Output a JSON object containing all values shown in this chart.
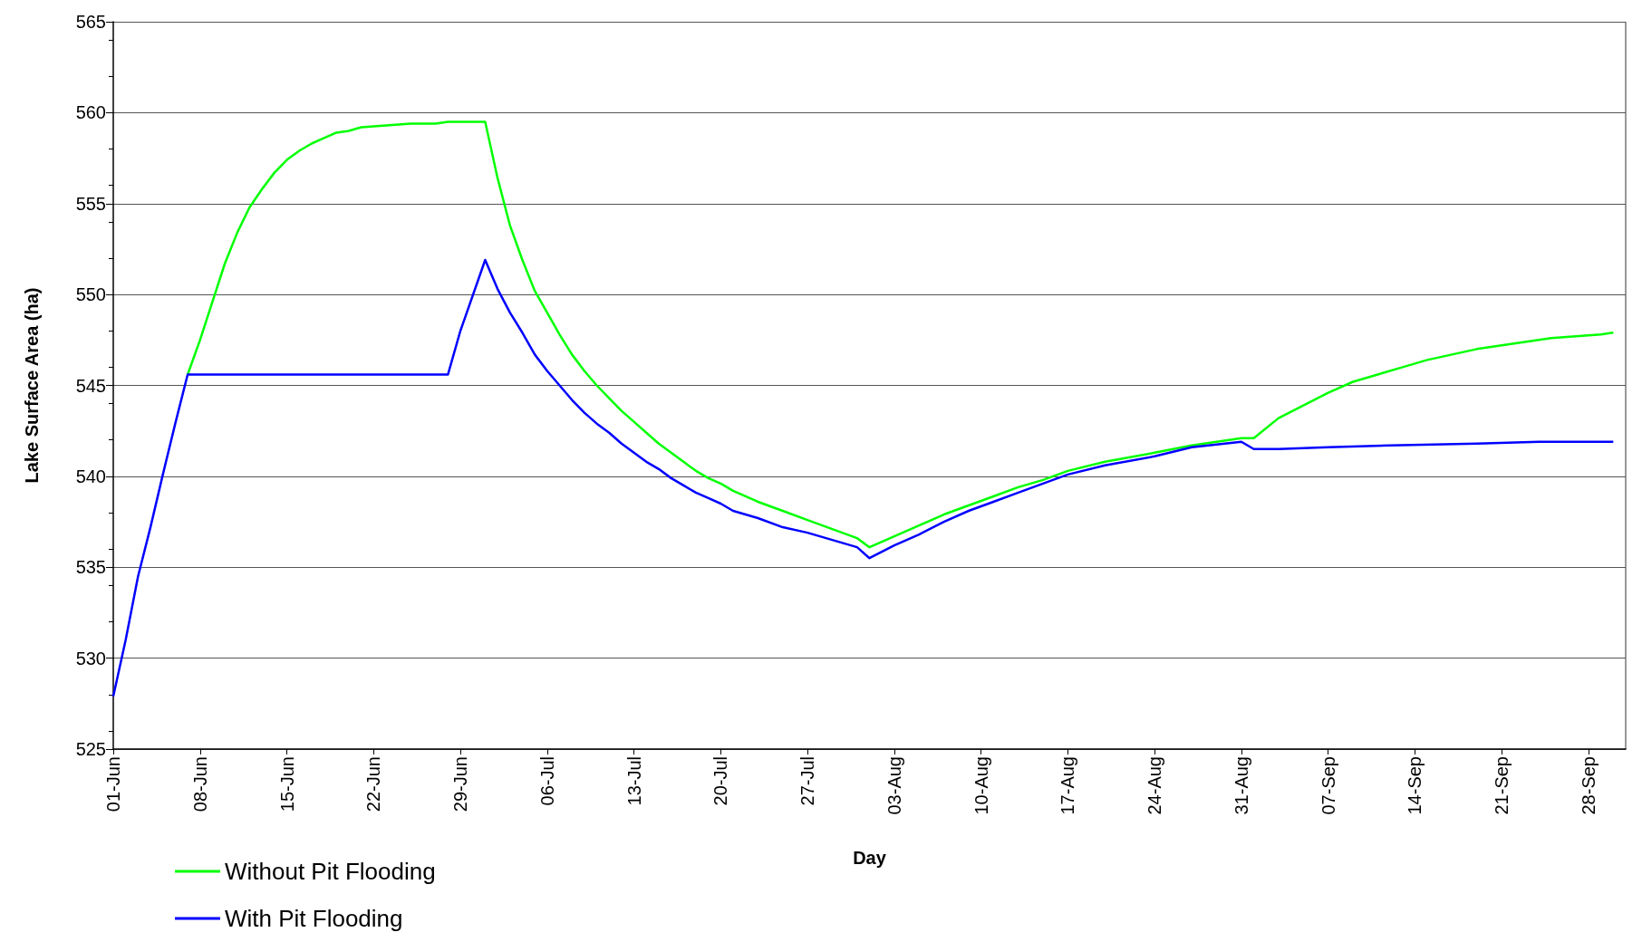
{
  "chart_data": {
    "type": "line",
    "xlabel": "Day",
    "ylabel": "Lake Surface Area (ha)",
    "xlim": [
      "--06-01",
      "--10-01"
    ],
    "ylim": [
      525,
      565
    ],
    "yticks": [
      525,
      530,
      535,
      540,
      545,
      550,
      555,
      560,
      565
    ],
    "xticks": [
      {
        "value": "--06-01",
        "label": "01-Jun"
      },
      {
        "value": "--06-08",
        "label": "08-Jun"
      },
      {
        "value": "--06-15",
        "label": "15-Jun"
      },
      {
        "value": "--06-22",
        "label": "22-Jun"
      },
      {
        "value": "--06-29",
        "label": "29-Jun"
      },
      {
        "value": "--07-06",
        "label": "06-Jul"
      },
      {
        "value": "--07-13",
        "label": "13-Jul"
      },
      {
        "value": "--07-20",
        "label": "20-Jul"
      },
      {
        "value": "--07-27",
        "label": "27-Jul"
      },
      {
        "value": "--08-03",
        "label": "03-Aug"
      },
      {
        "value": "--08-10",
        "label": "10-Aug"
      },
      {
        "value": "--08-17",
        "label": "17-Aug"
      },
      {
        "value": "--08-24",
        "label": "24-Aug"
      },
      {
        "value": "--08-31",
        "label": "31-Aug"
      },
      {
        "value": "--09-07",
        "label": "07-Sep"
      },
      {
        "value": "--09-14",
        "label": "14-Sep"
      },
      {
        "value": "--09-21",
        "label": "21-Sep"
      },
      {
        "value": "--09-28",
        "label": "28-Sep"
      }
    ],
    "grid": "y",
    "legend": "bottom left",
    "marker": "none",
    "line_style": "solid",
    "series": [
      {
        "name": "Without Pit Flooding",
        "color": "#00ff00",
        "x": [
          "--06-07",
          "--06-08",
          "--06-09",
          "--06-10",
          "--06-11",
          "--06-12",
          "--06-13",
          "--06-14",
          "--06-15",
          "--06-16",
          "--06-17",
          "--06-18",
          "--06-19",
          "--06-20",
          "--06-21",
          "--06-23",
          "--06-25",
          "--06-27",
          "--06-28",
          "--07-01",
          "--07-02",
          "--07-03",
          "--07-04",
          "--07-05",
          "--07-06",
          "--07-07",
          "--07-08",
          "--07-09",
          "--07-10",
          "--07-11",
          "--07-12",
          "--07-13",
          "--07-14",
          "--07-15",
          "--07-16",
          "--07-17",
          "--07-18",
          "--07-19",
          "--07-20",
          "--07-21",
          "--07-23",
          "--07-25",
          "--07-27",
          "--07-29",
          "--07-31",
          "--08-01",
          "--08-03",
          "--08-05",
          "--08-07",
          "--08-09",
          "--08-11",
          "--08-13",
          "--08-15",
          "--08-17",
          "--08-20",
          "--08-24",
          "--08-27",
          "--08-31",
          "--09-01",
          "--09-03",
          "--09-05",
          "--09-07",
          "--09-09",
          "--09-11",
          "--09-13",
          "--09-15",
          "--09-17",
          "--09-19",
          "--09-21",
          "--09-23",
          "--09-25",
          "--09-27",
          "--09-29",
          "--09-30"
        ],
        "values": [
          545.6,
          547.5,
          549.6,
          551.7,
          553.4,
          554.8,
          555.8,
          556.7,
          557.4,
          557.9,
          558.3,
          558.6,
          558.9,
          559.0,
          559.2,
          559.3,
          559.4,
          559.4,
          559.5,
          559.5,
          556.4,
          553.8,
          551.9,
          550.2,
          549.0,
          547.8,
          546.7,
          545.8,
          545.0,
          544.3,
          543.6,
          543.0,
          542.4,
          541.8,
          541.3,
          540.8,
          540.3,
          539.9,
          539.6,
          539.2,
          538.6,
          538.1,
          537.6,
          537.1,
          536.6,
          536.1,
          536.7,
          537.3,
          537.9,
          538.4,
          538.9,
          539.4,
          539.8,
          540.3,
          540.8,
          541.3,
          541.7,
          542.1,
          542.1,
          543.2,
          543.9,
          544.6,
          545.2,
          545.6,
          546.0,
          546.4,
          546.7,
          547.0,
          547.2,
          547.4,
          547.6,
          547.7,
          547.8,
          547.9
        ]
      },
      {
        "name": "With Pit Flooding",
        "color": "#0000ff",
        "x": [
          "--06-01",
          "--06-02",
          "--06-03",
          "--06-04",
          "--06-05",
          "--06-06",
          "--06-07",
          "--06-28",
          "--06-29",
          "--07-01",
          "--07-02",
          "--07-03",
          "--07-04",
          "--07-05",
          "--07-06",
          "--07-07",
          "--07-08",
          "--07-09",
          "--07-10",
          "--07-11",
          "--07-12",
          "--07-13",
          "--07-14",
          "--07-15",
          "--07-16",
          "--07-17",
          "--07-18",
          "--07-19",
          "--07-20",
          "--07-21",
          "--07-23",
          "--07-25",
          "--07-27",
          "--07-29",
          "--07-31",
          "--08-01",
          "--08-03",
          "--08-05",
          "--08-07",
          "--08-09",
          "--08-11",
          "--08-13",
          "--08-15",
          "--08-17",
          "--08-20",
          "--08-24",
          "--08-27",
          "--08-31",
          "--09-01",
          "--09-03",
          "--09-07",
          "--09-12",
          "--09-19",
          "--09-24",
          "--09-30"
        ],
        "values": [
          527.9,
          531.0,
          534.5,
          537.2,
          540.1,
          542.9,
          545.6,
          545.6,
          548.0,
          551.9,
          550.3,
          549.0,
          547.9,
          546.7,
          545.8,
          545.0,
          544.2,
          543.5,
          542.9,
          542.4,
          541.8,
          541.3,
          540.8,
          540.4,
          539.9,
          539.5,
          539.1,
          538.8,
          538.5,
          538.1,
          537.7,
          537.2,
          536.9,
          536.5,
          536.1,
          535.5,
          536.2,
          536.8,
          537.5,
          538.1,
          538.6,
          539.1,
          539.6,
          540.1,
          540.6,
          541.1,
          541.6,
          541.9,
          541.5,
          541.5,
          541.6,
          541.7,
          541.8,
          541.9,
          541.9
        ]
      }
    ]
  }
}
